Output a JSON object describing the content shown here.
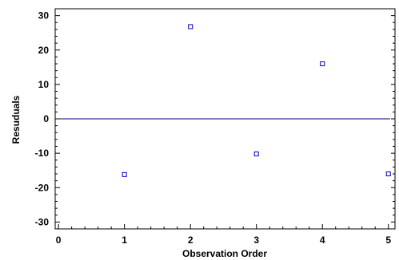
{
  "chart_data": {
    "type": "scatter",
    "title": "",
    "xlabel": "Observation Order",
    "ylabel": "Resuduals",
    "xlim": [
      -0.05,
      5.1
    ],
    "ylim": [
      -32,
      32
    ],
    "xticks": [
      0,
      1,
      2,
      3,
      4,
      5
    ],
    "yticks": [
      30,
      20,
      10,
      0,
      -10,
      -20,
      -30
    ],
    "xtick_labels": [
      "0",
      "1",
      "2",
      "3",
      "4",
      "5"
    ],
    "ytick_labels": [
      "30",
      "20",
      "10",
      "0",
      "-10",
      "-20",
      "-30"
    ],
    "reference_line": {
      "y": 0,
      "color": "#000080"
    },
    "grid": false,
    "marker": "square-open",
    "marker_color": "#0000cc",
    "series": [
      {
        "x": [
          1,
          2,
          3,
          4,
          5
        ],
        "y": [
          -16.2,
          26.8,
          -10.2,
          16.0,
          -16.0
        ]
      }
    ]
  }
}
